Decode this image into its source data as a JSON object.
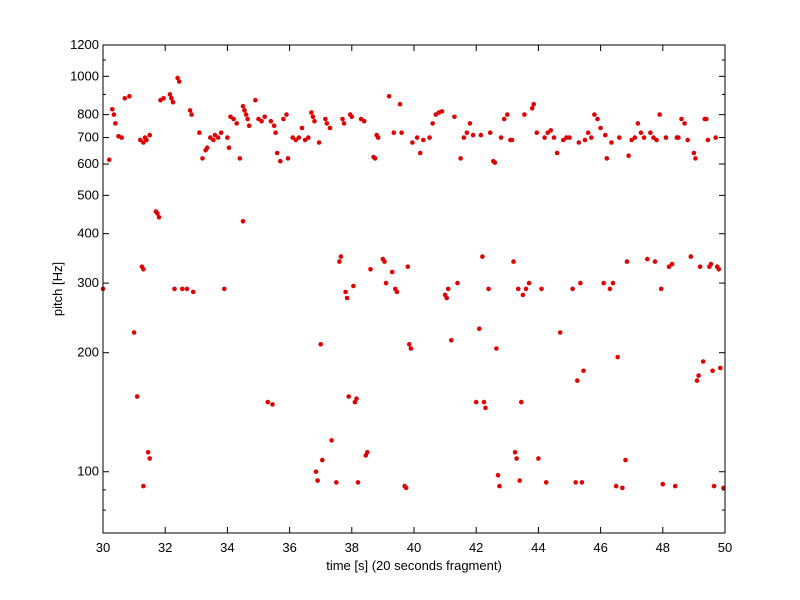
{
  "chart_data": {
    "type": "scatter",
    "xlabel": "time [s] (20 seconds fragment)",
    "ylabel": "pitch [Hz]",
    "xlim": [
      30,
      50
    ],
    "ylim": [
      70,
      1200
    ],
    "yscale": "log",
    "grid": false,
    "marker_color": "#e00000",
    "x_ticks": [
      30,
      32,
      34,
      36,
      38,
      40,
      42,
      44,
      46,
      48,
      50
    ],
    "x_tick_labels": [
      "30",
      "32",
      "34",
      "36",
      "38",
      "40",
      "42",
      "44",
      "46",
      "48",
      "50"
    ],
    "y_ticks": [
      100,
      200,
      300,
      400,
      500,
      600,
      700,
      800,
      1000,
      1200
    ],
    "y_tick_labels": [
      "100",
      "200",
      "300",
      "400",
      "500",
      "600",
      "700",
      "800",
      "1000",
      "1200"
    ],
    "series": [
      {
        "points": [
          [
            30.0,
            290
          ],
          [
            30.2,
            615
          ],
          [
            30.3,
            825
          ],
          [
            30.35,
            800
          ],
          [
            30.4,
            760
          ],
          [
            30.5,
            705
          ],
          [
            30.6,
            700
          ],
          [
            30.7,
            880
          ],
          [
            30.85,
            890
          ],
          [
            31.0,
            225
          ],
          [
            31.1,
            155
          ],
          [
            31.2,
            690
          ],
          [
            31.3,
            680
          ],
          [
            31.35,
            700
          ],
          [
            31.4,
            690
          ],
          [
            31.5,
            710
          ],
          [
            31.25,
            330
          ],
          [
            31.3,
            325
          ],
          [
            31.3,
            92
          ],
          [
            31.45,
            112
          ],
          [
            31.5,
            108
          ],
          [
            31.7,
            455
          ],
          [
            31.75,
            450
          ],
          [
            31.8,
            440
          ],
          [
            31.85,
            870
          ],
          [
            31.95,
            880
          ],
          [
            32.15,
            900
          ],
          [
            32.2,
            880
          ],
          [
            32.25,
            860
          ],
          [
            32.3,
            290
          ],
          [
            32.4,
            990
          ],
          [
            32.45,
            970
          ],
          [
            32.55,
            290
          ],
          [
            32.7,
            290
          ],
          [
            32.8,
            820
          ],
          [
            32.85,
            800
          ],
          [
            32.9,
            285
          ],
          [
            33.1,
            720
          ],
          [
            33.2,
            620
          ],
          [
            33.3,
            650
          ],
          [
            33.35,
            660
          ],
          [
            33.45,
            700
          ],
          [
            33.55,
            690
          ],
          [
            33.6,
            710
          ],
          [
            33.7,
            700
          ],
          [
            33.8,
            720
          ],
          [
            33.9,
            290
          ],
          [
            34.0,
            700
          ],
          [
            34.05,
            660
          ],
          [
            34.1,
            790
          ],
          [
            34.2,
            780
          ],
          [
            34.3,
            760
          ],
          [
            34.4,
            620
          ],
          [
            34.5,
            430
          ],
          [
            34.5,
            840
          ],
          [
            34.55,
            820
          ],
          [
            34.6,
            800
          ],
          [
            34.65,
            780
          ],
          [
            34.7,
            750
          ],
          [
            34.9,
            870
          ],
          [
            35.0,
            780
          ],
          [
            35.1,
            770
          ],
          [
            35.2,
            790
          ],
          [
            35.3,
            150
          ],
          [
            35.4,
            770
          ],
          [
            35.45,
            148
          ],
          [
            35.5,
            750
          ],
          [
            35.55,
            720
          ],
          [
            35.6,
            640
          ],
          [
            35.7,
            610
          ],
          [
            35.8,
            780
          ],
          [
            35.9,
            800
          ],
          [
            35.95,
            620
          ],
          [
            36.1,
            700
          ],
          [
            36.2,
            690
          ],
          [
            36.3,
            700
          ],
          [
            36.4,
            740
          ],
          [
            36.5,
            690
          ],
          [
            36.6,
            700
          ],
          [
            36.7,
            810
          ],
          [
            36.75,
            790
          ],
          [
            36.8,
            770
          ],
          [
            36.85,
            100
          ],
          [
            36.9,
            95
          ],
          [
            36.95,
            680
          ],
          [
            37.0,
            210
          ],
          [
            37.05,
            107
          ],
          [
            37.15,
            780
          ],
          [
            37.2,
            760
          ],
          [
            37.3,
            740
          ],
          [
            37.35,
            120
          ],
          [
            37.5,
            94
          ],
          [
            37.6,
            340
          ],
          [
            37.65,
            350
          ],
          [
            37.7,
            780
          ],
          [
            37.75,
            760
          ],
          [
            37.8,
            285
          ],
          [
            37.85,
            275
          ],
          [
            37.9,
            155
          ],
          [
            37.95,
            800
          ],
          [
            38.0,
            790
          ],
          [
            38.05,
            295
          ],
          [
            38.1,
            150
          ],
          [
            38.15,
            153
          ],
          [
            38.2,
            94
          ],
          [
            38.3,
            780
          ],
          [
            38.4,
            770
          ],
          [
            38.45,
            110
          ],
          [
            38.5,
            112
          ],
          [
            38.6,
            325
          ],
          [
            38.7,
            625
          ],
          [
            38.75,
            620
          ],
          [
            38.8,
            710
          ],
          [
            38.85,
            700
          ],
          [
            39.0,
            345
          ],
          [
            39.05,
            340
          ],
          [
            39.1,
            300
          ],
          [
            39.2,
            890
          ],
          [
            39.3,
            320
          ],
          [
            39.35,
            720
          ],
          [
            39.4,
            290
          ],
          [
            39.45,
            285
          ],
          [
            39.55,
            850
          ],
          [
            39.6,
            720
          ],
          [
            39.7,
            92
          ],
          [
            39.75,
            91
          ],
          [
            39.8,
            330
          ],
          [
            39.85,
            210
          ],
          [
            39.9,
            205
          ],
          [
            39.95,
            680
          ],
          [
            40.1,
            700
          ],
          [
            40.2,
            640
          ],
          [
            40.3,
            690
          ],
          [
            40.5,
            700
          ],
          [
            40.6,
            760
          ],
          [
            40.7,
            800
          ],
          [
            40.8,
            810
          ],
          [
            40.9,
            815
          ],
          [
            41.0,
            280
          ],
          [
            41.05,
            275
          ],
          [
            41.1,
            290
          ],
          [
            41.2,
            215
          ],
          [
            41.3,
            790
          ],
          [
            41.4,
            300
          ],
          [
            41.5,
            620
          ],
          [
            41.6,
            700
          ],
          [
            41.7,
            720
          ],
          [
            41.8,
            760
          ],
          [
            41.9,
            710
          ],
          [
            42.0,
            150
          ],
          [
            42.1,
            230
          ],
          [
            42.15,
            710
          ],
          [
            42.2,
            350
          ],
          [
            42.25,
            150
          ],
          [
            42.3,
            145
          ],
          [
            42.4,
            290
          ],
          [
            42.45,
            720
          ],
          [
            42.55,
            610
          ],
          [
            42.6,
            605
          ],
          [
            42.65,
            205
          ],
          [
            42.7,
            98
          ],
          [
            42.75,
            92
          ],
          [
            42.8,
            700
          ],
          [
            42.9,
            780
          ],
          [
            43.0,
            800
          ],
          [
            43.1,
            690
          ],
          [
            43.15,
            690
          ],
          [
            43.2,
            340
          ],
          [
            43.25,
            112
          ],
          [
            43.3,
            108
          ],
          [
            43.35,
            290
          ],
          [
            43.4,
            95
          ],
          [
            43.45,
            150
          ],
          [
            43.5,
            280
          ],
          [
            43.55,
            800
          ],
          [
            43.6,
            290
          ],
          [
            43.7,
            300
          ],
          [
            43.8,
            830
          ],
          [
            43.85,
            850
          ],
          [
            43.95,
            720
          ],
          [
            44.0,
            108
          ],
          [
            44.1,
            290
          ],
          [
            44.2,
            700
          ],
          [
            44.25,
            94
          ],
          [
            44.3,
            720
          ],
          [
            44.4,
            730
          ],
          [
            44.5,
            700
          ],
          [
            44.6,
            640
          ],
          [
            44.7,
            225
          ],
          [
            44.8,
            690
          ],
          [
            44.9,
            700
          ],
          [
            45.0,
            700
          ],
          [
            45.1,
            290
          ],
          [
            45.2,
            94
          ],
          [
            45.25,
            170
          ],
          [
            45.3,
            680
          ],
          [
            45.35,
            300
          ],
          [
            45.4,
            94
          ],
          [
            45.45,
            180
          ],
          [
            45.5,
            690
          ],
          [
            45.6,
            720
          ],
          [
            45.7,
            700
          ],
          [
            45.8,
            800
          ],
          [
            45.9,
            780
          ],
          [
            46.0,
            740
          ],
          [
            46.1,
            300
          ],
          [
            46.15,
            710
          ],
          [
            46.2,
            620
          ],
          [
            46.3,
            290
          ],
          [
            46.35,
            680
          ],
          [
            46.4,
            300
          ],
          [
            46.5,
            92
          ],
          [
            46.55,
            195
          ],
          [
            46.6,
            700
          ],
          [
            46.7,
            91
          ],
          [
            46.8,
            107
          ],
          [
            46.85,
            340
          ],
          [
            46.9,
            630
          ],
          [
            47.0,
            690
          ],
          [
            47.1,
            700
          ],
          [
            47.2,
            760
          ],
          [
            47.3,
            720
          ],
          [
            47.4,
            700
          ],
          [
            47.5,
            345
          ],
          [
            47.6,
            720
          ],
          [
            47.7,
            700
          ],
          [
            47.75,
            340
          ],
          [
            47.8,
            690
          ],
          [
            47.9,
            800
          ],
          [
            47.95,
            290
          ],
          [
            48.0,
            93
          ],
          [
            48.1,
            700
          ],
          [
            48.2,
            330
          ],
          [
            48.3,
            335
          ],
          [
            48.4,
            92
          ],
          [
            48.45,
            700
          ],
          [
            48.5,
            700
          ],
          [
            48.6,
            780
          ],
          [
            48.7,
            760
          ],
          [
            48.8,
            690
          ],
          [
            48.9,
            350
          ],
          [
            49.0,
            640
          ],
          [
            49.05,
            620
          ],
          [
            49.1,
            170
          ],
          [
            49.15,
            175
          ],
          [
            49.2,
            330
          ],
          [
            49.3,
            190
          ],
          [
            49.35,
            780
          ],
          [
            49.4,
            780
          ],
          [
            49.45,
            690
          ],
          [
            49.5,
            330
          ],
          [
            49.55,
            335
          ],
          [
            49.6,
            180
          ],
          [
            49.65,
            92
          ],
          [
            49.7,
            700
          ],
          [
            49.75,
            330
          ],
          [
            49.8,
            325
          ],
          [
            49.85,
            183
          ],
          [
            49.95,
            91
          ]
        ]
      }
    ]
  }
}
